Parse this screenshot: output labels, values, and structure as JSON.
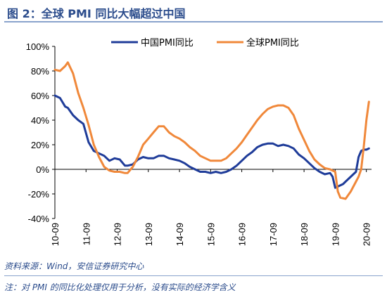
{
  "title": "图 2：全球 PMI 同比大幅超过中国",
  "source": "资料来源：Wind，安信证券研究中心",
  "note": "注：对 PMI 的同比化处理仅用于分析，没有实际的经济学含义",
  "chart_data": {
    "type": "line",
    "ylim": [
      -40,
      100
    ],
    "yticks": [
      -40,
      -20,
      0,
      20,
      40,
      60,
      80,
      100
    ],
    "ytick_labels": [
      "-40%",
      "-20%",
      "0%",
      "20%",
      "40%",
      "60%",
      "80%",
      "100%"
    ],
    "xlim": [
      2010.667,
      2020.833
    ],
    "xticks": [
      2010.667,
      2011.667,
      2012.667,
      2013.667,
      2014.667,
      2015.667,
      2016.667,
      2017.667,
      2018.667,
      2019.667,
      2020.667
    ],
    "xtick_labels": [
      "10-09",
      "11-09",
      "12-09",
      "13-09",
      "14-09",
      "15-09",
      "16-09",
      "17-09",
      "18-09",
      "19-09",
      "20-09"
    ],
    "legend_position": "top-right",
    "grid": false,
    "series": [
      {
        "name": "中国PMI同比",
        "color": "#1f3c99",
        "x": [
          2010.667,
          2010.833,
          2011.0,
          2011.083,
          2011.25,
          2011.417,
          2011.583,
          2011.75,
          2011.917,
          2012.083,
          2012.25,
          2012.417,
          2012.583,
          2012.75,
          2012.917,
          2013.0,
          2013.167,
          2013.333,
          2013.5,
          2013.667,
          2013.833,
          2014.0,
          2014.167,
          2014.333,
          2014.5,
          2014.667,
          2014.833,
          2015.0,
          2015.167,
          2015.333,
          2015.5,
          2015.667,
          2015.833,
          2016.0,
          2016.167,
          2016.333,
          2016.5,
          2016.667,
          2016.833,
          2017.0,
          2017.167,
          2017.333,
          2017.5,
          2017.667,
          2017.833,
          2018.0,
          2018.167,
          2018.333,
          2018.5,
          2018.667,
          2018.833,
          2019.0,
          2019.167,
          2019.333,
          2019.5,
          2019.583,
          2019.667,
          2019.75,
          2019.917,
          2020.0,
          2020.083,
          2020.167,
          2020.25,
          2020.333,
          2020.417,
          2020.5,
          2020.583,
          2020.667,
          2020.75
        ],
        "values": [
          60,
          58,
          51,
          50,
          44,
          40,
          37,
          22,
          15,
          13,
          11,
          7,
          9,
          8,
          3,
          3,
          4,
          8,
          10,
          9,
          9,
          11,
          11,
          9,
          8,
          7,
          5,
          2,
          0,
          -2,
          -2,
          -3,
          -2,
          -3,
          -2,
          0,
          3,
          7,
          11,
          14,
          18,
          20,
          21,
          21,
          19,
          20,
          19,
          17,
          12,
          9,
          5,
          1,
          -2,
          -4,
          -3,
          -6,
          -15,
          -14,
          -12,
          -10,
          -8,
          -6,
          -4,
          -2,
          10,
          15,
          16,
          16,
          17
        ]
      },
      {
        "name": "全球PMI同比",
        "color": "#f0883a",
        "x": [
          2010.667,
          2010.833,
          2011.0,
          2011.083,
          2011.25,
          2011.417,
          2011.583,
          2011.75,
          2011.917,
          2012.083,
          2012.25,
          2012.417,
          2012.583,
          2012.75,
          2012.917,
          2013.0,
          2013.167,
          2013.333,
          2013.5,
          2013.667,
          2013.833,
          2014.0,
          2014.167,
          2014.333,
          2014.5,
          2014.667,
          2014.833,
          2015.0,
          2015.167,
          2015.333,
          2015.5,
          2015.667,
          2015.833,
          2016.0,
          2016.167,
          2016.333,
          2016.5,
          2016.667,
          2016.833,
          2017.0,
          2017.167,
          2017.333,
          2017.5,
          2017.667,
          2017.833,
          2018.0,
          2018.167,
          2018.333,
          2018.5,
          2018.667,
          2018.833,
          2019.0,
          2019.167,
          2019.333,
          2019.5,
          2019.667,
          2019.75,
          2019.833,
          2020.0,
          2020.167,
          2020.25,
          2020.333,
          2020.417,
          2020.5,
          2020.583,
          2020.667,
          2020.75
        ],
        "values": [
          81,
          80,
          84,
          87,
          78,
          62,
          50,
          36,
          20,
          10,
          2,
          -1,
          -2,
          -2,
          -3,
          -3,
          2,
          10,
          20,
          25,
          30,
          35,
          35,
          30,
          27,
          25,
          22,
          18,
          15,
          11,
          9,
          7,
          7,
          7,
          9,
          13,
          17,
          22,
          28,
          34,
          40,
          45,
          49,
          51,
          52,
          52,
          50,
          44,
          33,
          24,
          15,
          8,
          4,
          1,
          0,
          -2,
          -18,
          -23,
          -24,
          -18,
          -14,
          -10,
          -6,
          0,
          18,
          40,
          55
        ]
      }
    ]
  }
}
